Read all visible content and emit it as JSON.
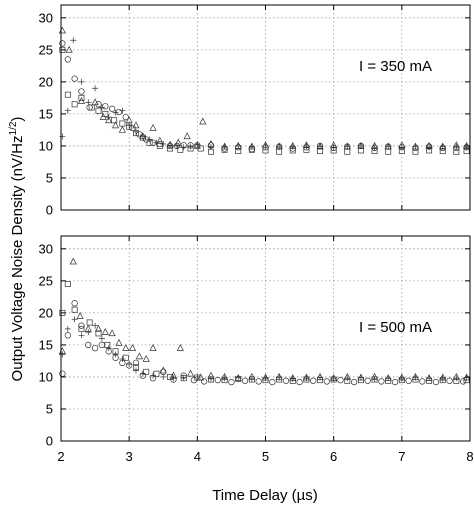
{
  "chart_data": [
    {
      "type": "scatter",
      "panel": "top",
      "annotation": "I = 350 mA",
      "xlim": [
        2,
        8
      ],
      "ylim": [
        0,
        32
      ],
      "xticks": [
        2,
        3,
        4,
        5,
        6,
        7,
        8
      ],
      "yticks": [
        0,
        5,
        10,
        15,
        20,
        25,
        30
      ],
      "grid": true,
      "xticklabels_visible": false,
      "series": [
        {
          "marker": "circle",
          "x": [
            2.02,
            2.1,
            2.2,
            2.3,
            2.42,
            2.55,
            2.65,
            2.75,
            2.85,
            2.95,
            3.05,
            3.15,
            3.25,
            3.35,
            3.45,
            3.6,
            3.7,
            3.8,
            3.9,
            4.0,
            4.2,
            4.4,
            4.6,
            4.8,
            5.0,
            5.2,
            5.4,
            5.6,
            5.8,
            6.0,
            6.2,
            6.4,
            6.6,
            6.8,
            7.0,
            7.2,
            7.4,
            7.6,
            7.8,
            7.95
          ],
          "y": [
            26,
            23.5,
            20.5,
            18.5,
            16,
            16.5,
            16.2,
            15.8,
            15.3,
            14.5,
            12.8,
            11.8,
            11,
            10.5,
            10.3,
            10,
            10,
            10.1,
            10.1,
            10.1,
            10.1,
            9.6,
            9.8,
            9.5,
            9.8,
            9.9,
            9.6,
            9.8,
            10,
            9.7,
            9.9,
            10,
            9.7,
            9.9,
            9.8,
            9.7,
            9.9,
            9.7,
            9.7,
            9.8
          ]
        },
        {
          "marker": "square",
          "x": [
            2.02,
            2.1,
            2.2,
            2.3,
            2.45,
            2.55,
            2.65,
            2.78,
            2.9,
            3.0,
            3.1,
            3.2,
            3.3,
            3.45,
            3.6,
            3.75,
            3.9,
            4.05,
            4.2,
            4.4,
            4.6,
            4.8,
            5.0,
            5.2,
            5.4,
            5.6,
            5.8,
            6.0,
            6.2,
            6.4,
            6.6,
            6.8,
            7.0,
            7.2,
            7.4,
            7.6,
            7.8,
            7.95
          ],
          "y": [
            25,
            18,
            16.5,
            17.5,
            16,
            15.5,
            15,
            14,
            13.5,
            13,
            12,
            11.3,
            10.5,
            10,
            9.6,
            9.4,
            9.6,
            9.6,
            9.1,
            9.4,
            9.2,
            9.4,
            9.3,
            9.1,
            9.3,
            9.4,
            9.2,
            9.3,
            9.1,
            9.3,
            9.2,
            9.1,
            9.2,
            9.1,
            9.3,
            9.2,
            9.1,
            9.2
          ]
        },
        {
          "marker": "triangle",
          "x": [
            2.02,
            2.12,
            2.3,
            2.5,
            2.62,
            2.7,
            2.8,
            2.9,
            3.0,
            3.1,
            3.2,
            3.35,
            3.45,
            3.6,
            3.72,
            3.85,
            4.0,
            4.08,
            4.2,
            4.4,
            4.6,
            4.8,
            5.0,
            5.2,
            5.4,
            5.6,
            5.8,
            6.0,
            6.2,
            6.4,
            6.6,
            6.8,
            7.0,
            7.2,
            7.4,
            7.6,
            7.8,
            7.95
          ],
          "y": [
            28,
            25,
            17,
            16.8,
            14.5,
            14,
            13.2,
            12.5,
            14,
            13.2,
            11.5,
            12.8,
            10.8,
            10.2,
            10.5,
            11.5,
            10,
            13.8,
            10.3,
            9.9,
            10,
            9.9,
            10.1,
            9.9,
            10,
            10.1,
            9.9,
            10.1,
            9.9,
            10,
            10,
            9.9,
            10.1,
            9.9,
            10,
            9.9,
            10.1,
            10
          ]
        },
        {
          "marker": "plus",
          "x": [
            2.02,
            2.1,
            2.18,
            2.3,
            2.4,
            2.5,
            2.6,
            2.7,
            2.8,
            2.9,
            3.0,
            3.1,
            3.2,
            3.3,
            3.4,
            3.5,
            3.6,
            3.7,
            3.8,
            3.9,
            4.0,
            4.2,
            4.4,
            4.6,
            4.8,
            5.0,
            5.2,
            5.4,
            5.6,
            5.8,
            6.0,
            6.2,
            6.4,
            6.6,
            6.8,
            7.0,
            7.2,
            7.4,
            7.6,
            7.8,
            7.95
          ],
          "y": [
            11.5,
            15.5,
            26.5,
            20,
            16.8,
            19,
            16,
            14.5,
            15.2,
            15.5,
            13.2,
            12.2,
            11.5,
            11,
            10.5,
            10.3,
            10.1,
            10,
            9.8,
            9.9,
            10.2,
            9.8,
            9.9,
            10,
            9.9,
            10,
            9.8,
            9.9,
            10,
            9.9,
            9.8,
            9.9,
            10,
            9.8,
            9.9,
            9.8,
            9.9,
            9.8,
            9.9,
            9.9,
            9.8
          ]
        }
      ]
    },
    {
      "type": "scatter",
      "panel": "bottom",
      "annotation": "I = 500 mA",
      "xlim": [
        2,
        8
      ],
      "ylim": [
        0,
        32
      ],
      "xticks": [
        2,
        3,
        4,
        5,
        6,
        7,
        8
      ],
      "yticks": [
        0,
        5,
        10,
        15,
        20,
        25,
        30
      ],
      "grid": true,
      "xticklabels_visible": true,
      "series": [
        {
          "marker": "circle",
          "x": [
            2.02,
            2.1,
            2.2,
            2.3,
            2.4,
            2.5,
            2.6,
            2.7,
            2.8,
            2.9,
            3.0,
            3.1,
            3.2,
            3.35,
            3.5,
            3.65,
            3.8,
            3.95,
            4.1,
            4.3,
            4.5,
            4.7,
            4.9,
            5.1,
            5.3,
            5.5,
            5.7,
            5.9,
            6.1,
            6.3,
            6.5,
            6.7,
            6.9,
            7.1,
            7.3,
            7.5,
            7.7,
            7.9
          ],
          "y": [
            10.5,
            16.5,
            21.5,
            18,
            15,
            14.5,
            15,
            14,
            13,
            12.2,
            11.8,
            12.2,
            10.2,
            9.8,
            10.8,
            9.6,
            10.2,
            9.5,
            9.3,
            9.5,
            9.2,
            9.4,
            9.3,
            9.2,
            9.4,
            9.2,
            9.4,
            9.3,
            9.5,
            9.2,
            9.4,
            9.3,
            9.2,
            9.4,
            9.3,
            9.2,
            9.4,
            9.3
          ]
        },
        {
          "marker": "square",
          "x": [
            2.02,
            2.1,
            2.2,
            2.3,
            2.42,
            2.55,
            2.68,
            2.8,
            2.95,
            3.1,
            3.25,
            3.4,
            3.6,
            3.8,
            4.0,
            4.2,
            4.4,
            4.6,
            4.8,
            5.0,
            5.2,
            5.4,
            5.6,
            5.8,
            6.0,
            6.2,
            6.4,
            6.6,
            6.8,
            7.0,
            7.2,
            7.4,
            7.6,
            7.8,
            7.95
          ],
          "y": [
            20,
            24.5,
            20.5,
            17.5,
            18.5,
            16.8,
            15,
            14,
            13,
            11.5,
            10.8,
            10.5,
            10,
            9.8,
            9.9,
            9.6,
            9.5,
            9.7,
            9.6,
            9.5,
            9.6,
            9.4,
            9.6,
            9.5,
            9.6,
            9.4,
            9.5,
            9.6,
            9.4,
            9.5,
            9.6,
            9.4,
            9.5,
            9.4,
            9.5
          ]
        },
        {
          "marker": "triangle",
          "x": [
            2.02,
            2.18,
            2.28,
            2.4,
            2.55,
            2.65,
            2.75,
            2.85,
            2.95,
            3.05,
            3.15,
            3.25,
            3.35,
            3.5,
            3.65,
            3.75,
            3.9,
            4.05,
            4.2,
            4.4,
            4.6,
            4.8,
            5.0,
            5.2,
            5.4,
            5.6,
            5.8,
            6.0,
            6.2,
            6.4,
            6.6,
            6.8,
            7.0,
            7.2,
            7.4,
            7.6,
            7.8,
            7.95
          ],
          "y": [
            14,
            28,
            19.5,
            17.5,
            17.5,
            17,
            16.8,
            15.3,
            14.5,
            14.5,
            13.2,
            12.8,
            14.5,
            11,
            10.2,
            14.5,
            10.5,
            9.9,
            10.2,
            10,
            9.8,
            10,
            9.9,
            10,
            9.8,
            9.9,
            10,
            9.8,
            10,
            9.9,
            10,
            9.8,
            9.9,
            10,
            9.8,
            9.9,
            10,
            9.9
          ]
        },
        {
          "marker": "plus",
          "x": [
            2.02,
            2.1,
            2.2,
            2.3,
            2.4,
            2.5,
            2.6,
            2.7,
            2.8,
            2.9,
            3.0,
            3.1,
            3.2,
            3.35,
            3.5,
            3.65,
            3.8,
            4.0,
            4.2,
            4.4,
            4.6,
            4.8,
            5.0,
            5.2,
            5.4,
            5.6,
            5.8,
            6.0,
            6.2,
            6.4,
            6.6,
            6.8,
            7.0,
            7.2,
            7.4,
            7.6,
            7.8,
            7.95
          ],
          "y": [
            13.5,
            17.5,
            19,
            16.5,
            17,
            18,
            16,
            14.5,
            13.5,
            12.8,
            12,
            11,
            10.5,
            10.2,
            10,
            9.8,
            9.9,
            10,
            9.7,
            9.8,
            9.9,
            9.7,
            9.8,
            9.9,
            9.7,
            9.8,
            9.9,
            9.7,
            9.8,
            9.9,
            9.7,
            9.8,
            9.7,
            9.9,
            9.8,
            9.7,
            9.8,
            9.9
          ]
        }
      ]
    }
  ],
  "axes": {
    "xlabel": "Time Delay (µs)",
    "ylabel_main": "Output Voltage Noise Density (nV/Hz",
    "ylabel_sup": "1/2",
    "ylabel_close": ")"
  }
}
